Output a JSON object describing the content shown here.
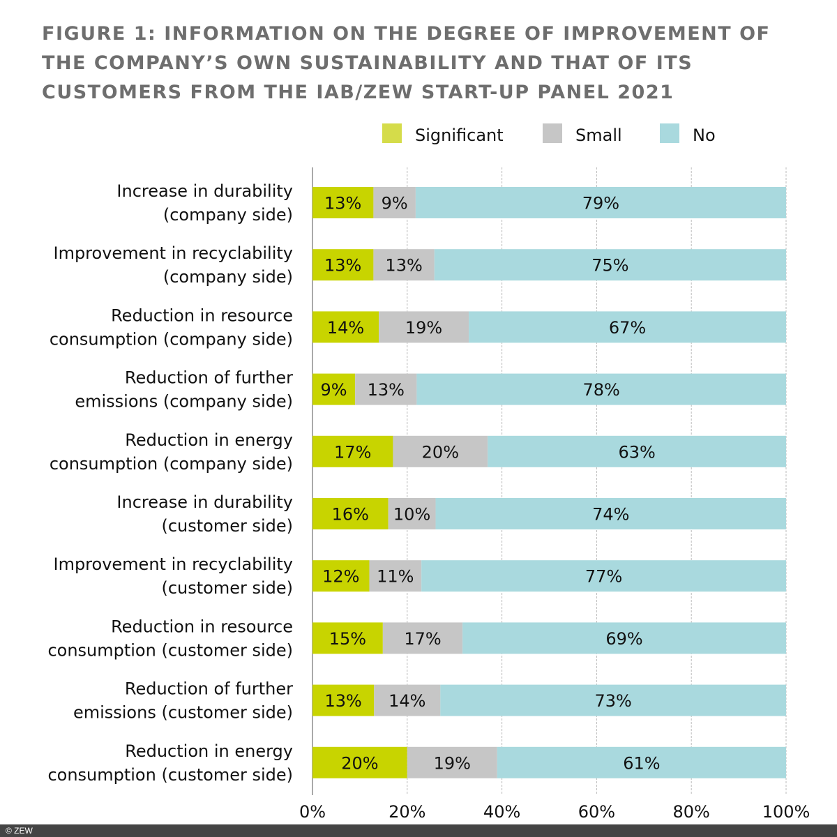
{
  "chart_data": {
    "type": "bar",
    "orientation": "horizontal",
    "stacked": true,
    "title": "Figure 1: Information on the degree of improvement of the company’s own sustainability and that of its customers from the IAB/ZEW Start-up Panel 2021",
    "categories": [
      [
        "Increase in durability",
        "(company side)"
      ],
      [
        "Improvement in recyclability",
        "(company side)"
      ],
      [
        "Reduction in resource",
        "consumption (company side)"
      ],
      [
        "Reduction of further",
        "emissions (company side)"
      ],
      [
        "Reduction in energy",
        "consumption (company side)"
      ],
      [
        "Increase in durability",
        "(customer side)"
      ],
      [
        "Improvement in recyclability",
        "(customer side)"
      ],
      [
        "Reduction in resource",
        "consumption (customer side)"
      ],
      [
        "Reduction of further",
        "emissions (customer side)"
      ],
      [
        "Reduction in energy",
        "consumption (customer side)"
      ]
    ],
    "series": [
      {
        "name": "Significant",
        "color": "#c8d400",
        "legend_color": "#d5dc4a",
        "values": [
          13,
          13,
          14,
          9,
          17,
          16,
          12,
          15,
          13,
          20
        ]
      },
      {
        "name": "Small",
        "color": "#c6c6c6",
        "values": [
          9,
          13,
          19,
          13,
          20,
          10,
          11,
          17,
          14,
          19
        ]
      },
      {
        "name": "No",
        "color": "#a9d9de",
        "values": [
          79,
          75,
          67,
          78,
          63,
          74,
          77,
          69,
          73,
          61
        ]
      }
    ],
    "xlim": [
      0,
      100
    ],
    "xticks": [
      "0%",
      "20%",
      "40%",
      "60%",
      "80%",
      "100%"
    ],
    "grid": true,
    "legend": "top",
    "value_suffix": "%"
  },
  "footer": "© ZEW"
}
